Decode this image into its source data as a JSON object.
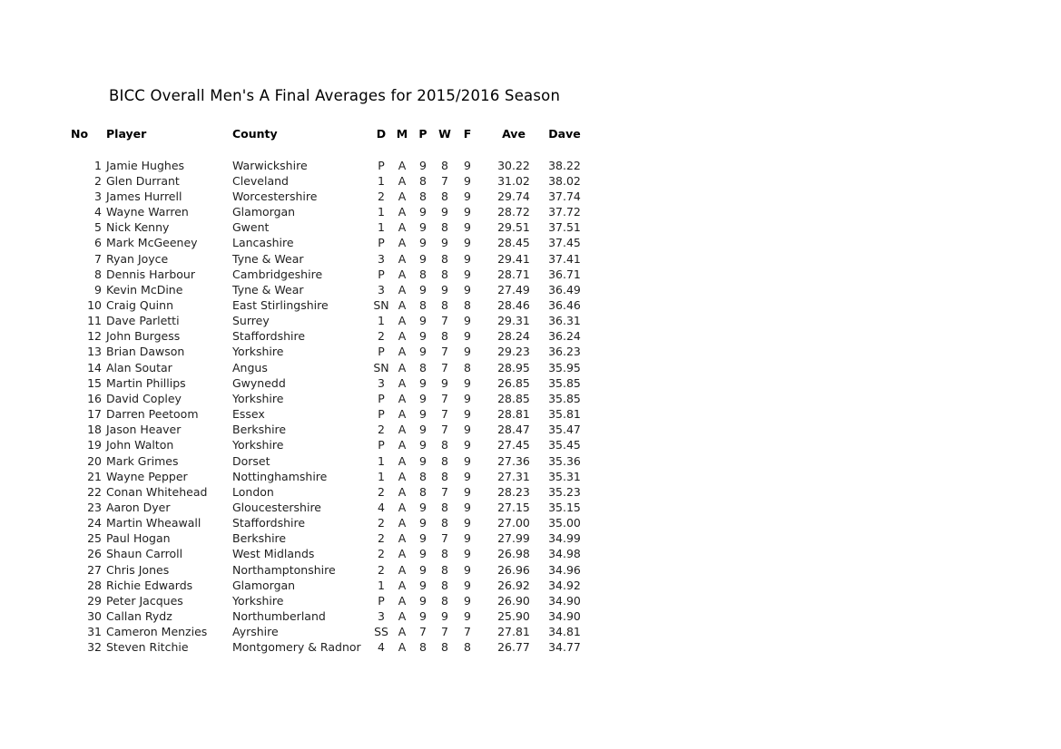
{
  "title": "BICC Overall Men's A Final Averages for 2015/2016 Season",
  "table": {
    "headers": [
      "No",
      "Player",
      "County",
      "D",
      "M",
      "P",
      "W",
      "F",
      "Ave",
      "Dave"
    ],
    "rows": [
      [
        "1",
        "Jamie Hughes",
        "Warwickshire",
        "P",
        "A",
        "9",
        "8",
        "9",
        "30.22",
        "38.22"
      ],
      [
        "2",
        "Glen Durrant",
        "Cleveland",
        "1",
        "A",
        "8",
        "7",
        "9",
        "31.02",
        "38.02"
      ],
      [
        "3",
        "James Hurrell",
        "Worcestershire",
        "2",
        "A",
        "8",
        "8",
        "9",
        "29.74",
        "37.74"
      ],
      [
        "4",
        "Wayne Warren",
        "Glamorgan",
        "1",
        "A",
        "9",
        "9",
        "9",
        "28.72",
        "37.72"
      ],
      [
        "5",
        "Nick Kenny",
        "Gwent",
        "1",
        "A",
        "9",
        "8",
        "9",
        "29.51",
        "37.51"
      ],
      [
        "6",
        "Mark McGeeney",
        "Lancashire",
        "P",
        "A",
        "9",
        "9",
        "9",
        "28.45",
        "37.45"
      ],
      [
        "7",
        "Ryan Joyce",
        "Tyne & Wear",
        "3",
        "A",
        "9",
        "8",
        "9",
        "29.41",
        "37.41"
      ],
      [
        "8",
        "Dennis Harbour",
        "Cambridgeshire",
        "P",
        "A",
        "8",
        "8",
        "9",
        "28.71",
        "36.71"
      ],
      [
        "9",
        "Kevin McDine",
        "Tyne & Wear",
        "3",
        "A",
        "9",
        "9",
        "9",
        "27.49",
        "36.49"
      ],
      [
        "10",
        "Craig Quinn",
        "East Stirlingshire",
        "SN",
        "A",
        "8",
        "8",
        "8",
        "28.46",
        "36.46"
      ],
      [
        "11",
        "Dave Parletti",
        "Surrey",
        "1",
        "A",
        "9",
        "7",
        "9",
        "29.31",
        "36.31"
      ],
      [
        "12",
        "John Burgess",
        "Staffordshire",
        "2",
        "A",
        "9",
        "8",
        "9",
        "28.24",
        "36.24"
      ],
      [
        "13",
        "Brian Dawson",
        "Yorkshire",
        "P",
        "A",
        "9",
        "7",
        "9",
        "29.23",
        "36.23"
      ],
      [
        "14",
        "Alan Soutar",
        "Angus",
        "SN",
        "A",
        "8",
        "7",
        "8",
        "28.95",
        "35.95"
      ],
      [
        "15",
        "Martin Phillips",
        "Gwynedd",
        "3",
        "A",
        "9",
        "9",
        "9",
        "26.85",
        "35.85"
      ],
      [
        "16",
        "David Copley",
        "Yorkshire",
        "P",
        "A",
        "9",
        "7",
        "9",
        "28.85",
        "35.85"
      ],
      [
        "17",
        "Darren Peetoom",
        "Essex",
        "P",
        "A",
        "9",
        "7",
        "9",
        "28.81",
        "35.81"
      ],
      [
        "18",
        "Jason Heaver",
        "Berkshire",
        "2",
        "A",
        "9",
        "7",
        "9",
        "28.47",
        "35.47"
      ],
      [
        "19",
        "John Walton",
        "Yorkshire",
        "P",
        "A",
        "9",
        "8",
        "9",
        "27.45",
        "35.45"
      ],
      [
        "20",
        "Mark Grimes",
        "Dorset",
        "1",
        "A",
        "9",
        "8",
        "9",
        "27.36",
        "35.36"
      ],
      [
        "21",
        "Wayne Pepper",
        "Nottinghamshire",
        "1",
        "A",
        "8",
        "8",
        "9",
        "27.31",
        "35.31"
      ],
      [
        "22",
        "Conan Whitehead",
        "London",
        "2",
        "A",
        "8",
        "7",
        "9",
        "28.23",
        "35.23"
      ],
      [
        "23",
        "Aaron Dyer",
        "Gloucestershire",
        "4",
        "A",
        "9",
        "8",
        "9",
        "27.15",
        "35.15"
      ],
      [
        "24",
        "Martin Wheawall",
        "Staffordshire",
        "2",
        "A",
        "9",
        "8",
        "9",
        "27.00",
        "35.00"
      ],
      [
        "25",
        "Paul Hogan",
        "Berkshire",
        "2",
        "A",
        "9",
        "7",
        "9",
        "27.99",
        "34.99"
      ],
      [
        "26",
        "Shaun Carroll",
        "West Midlands",
        "2",
        "A",
        "9",
        "8",
        "9",
        "26.98",
        "34.98"
      ],
      [
        "27",
        "Chris Jones",
        "Northamptonshire",
        "2",
        "A",
        "9",
        "8",
        "9",
        "26.96",
        "34.96"
      ],
      [
        "28",
        "Richie Edwards",
        "Glamorgan",
        "1",
        "A",
        "9",
        "8",
        "9",
        "26.92",
        "34.92"
      ],
      [
        "29",
        "Peter Jacques",
        "Yorkshire",
        "P",
        "A",
        "9",
        "8",
        "9",
        "26.90",
        "34.90"
      ],
      [
        "30",
        "Callan Rydz",
        "Northumberland",
        "3",
        "A",
        "9",
        "9",
        "9",
        "25.90",
        "34.90"
      ],
      [
        "31",
        "Cameron Menzies",
        "Ayrshire",
        "SS",
        "A",
        "7",
        "7",
        "7",
        "27.81",
        "34.81"
      ],
      [
        "32",
        "Steven Ritchie",
        "Montgomery & Radnor",
        "4",
        "A",
        "8",
        "8",
        "8",
        "26.77",
        "34.77"
      ]
    ]
  }
}
